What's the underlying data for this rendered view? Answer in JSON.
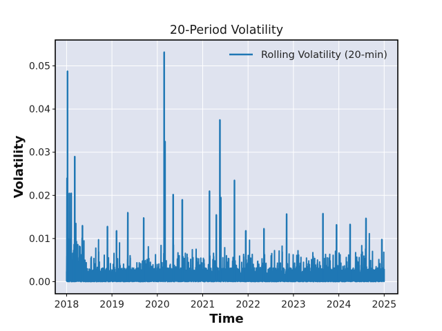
{
  "chart_data": {
    "type": "line",
    "title": "20-Period Volatility",
    "xlabel": "Time",
    "ylabel": "Volatility",
    "xlim": [
      2017.75,
      2025.3
    ],
    "ylim": [
      -0.0028,
      0.056
    ],
    "x_ticks": [
      2018,
      2019,
      2020,
      2021,
      2022,
      2023,
      2024,
      2025
    ],
    "x_tick_labels": [
      "2018",
      "2019",
      "2020",
      "2021",
      "2022",
      "2023",
      "2024",
      "2025"
    ],
    "y_ticks": [
      0.0,
      0.01,
      0.02,
      0.03,
      0.04,
      0.05
    ],
    "y_tick_labels": [
      "0.00",
      "0.01",
      "0.02",
      "0.03",
      "0.04",
      "0.05"
    ],
    "grid": true,
    "legend_position": "top-right",
    "series": [
      {
        "name": "Rolling Volatility (20-min)",
        "color": "#1f77b4",
        "x_range": [
          2018.0,
          2025.0
        ],
        "base_level": 0.002,
        "peaks": [
          {
            "x": 2018.02,
            "y": 0.0488
          },
          {
            "x": 2018.01,
            "y": 0.024
          },
          {
            "x": 2018.06,
            "y": 0.0205
          },
          {
            "x": 2018.1,
            "y": 0.0205
          },
          {
            "x": 2018.18,
            "y": 0.029
          },
          {
            "x": 2018.35,
            "y": 0.013
          },
          {
            "x": 2018.9,
            "y": 0.0128
          },
          {
            "x": 2019.1,
            "y": 0.0118
          },
          {
            "x": 2019.35,
            "y": 0.016
          },
          {
            "x": 2019.7,
            "y": 0.0148
          },
          {
            "x": 2020.15,
            "y": 0.0532
          },
          {
            "x": 2020.17,
            "y": 0.0325
          },
          {
            "x": 2020.35,
            "y": 0.0202
          },
          {
            "x": 2020.55,
            "y": 0.019
          },
          {
            "x": 2021.15,
            "y": 0.021
          },
          {
            "x": 2021.3,
            "y": 0.0155
          },
          {
            "x": 2021.38,
            "y": 0.0375
          },
          {
            "x": 2021.4,
            "y": 0.0195
          },
          {
            "x": 2021.7,
            "y": 0.0235
          },
          {
            "x": 2021.95,
            "y": 0.0118
          },
          {
            "x": 2022.35,
            "y": 0.0123
          },
          {
            "x": 2022.85,
            "y": 0.0157
          },
          {
            "x": 2023.65,
            "y": 0.0158
          },
          {
            "x": 2023.95,
            "y": 0.0132
          },
          {
            "x": 2024.25,
            "y": 0.0133
          },
          {
            "x": 2024.6,
            "y": 0.0147
          },
          {
            "x": 2024.95,
            "y": 0.0098
          }
        ]
      }
    ]
  }
}
